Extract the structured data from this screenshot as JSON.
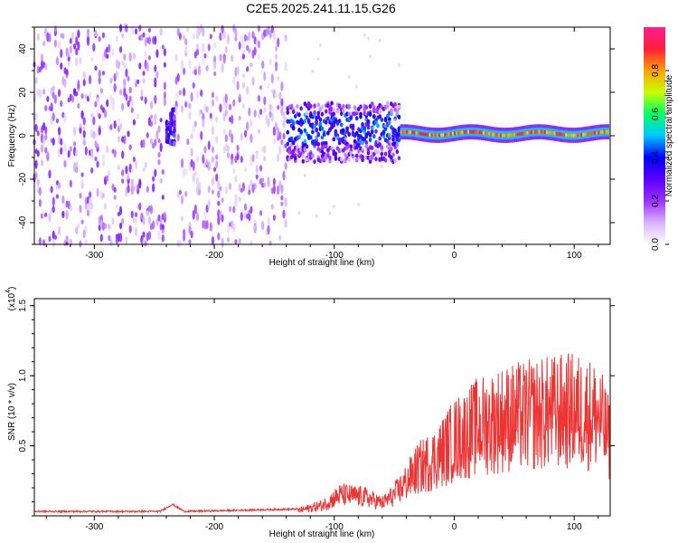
{
  "title": "C2E5.2025.241.11.15.G26",
  "chart_data": [
    {
      "type": "heatmap",
      "name": "spectrogram",
      "xlabel": "Height of straight line (km)",
      "ylabel": "Frequency (Hz)",
      "xlim": [
        -350,
        130
      ],
      "ylim": [
        -50,
        50
      ],
      "xticks": [
        -300,
        -200,
        -100,
        0,
        100
      ],
      "xtick_labels": [
        "-300",
        "-200",
        "-100",
        "0",
        "100"
      ],
      "yticks": [
        -40,
        -20,
        0,
        20,
        40
      ],
      "ytick_labels": [
        "-40",
        "-20",
        "0",
        "20",
        "40"
      ],
      "colorbar": {
        "label": "Normalized spectral amplitude",
        "range": [
          0,
          1
        ],
        "ticks": [
          0.0,
          0.2,
          0.4,
          0.6,
          0.8
        ],
        "tick_labels": [
          "0.0",
          "0.2",
          "0.4",
          "0.6",
          "0.8"
        ],
        "colors": [
          "#ffffff",
          "#d8b4ff",
          "#9b30ff",
          "#5a00ff",
          "#0000ff",
          "#00c8ff",
          "#00ff66",
          "#c8ff00",
          "#ffa000",
          "#ff1e3c",
          "#ff1e8c"
        ]
      },
      "regions": [
        {
          "x": [
            -350,
            -240
          ],
          "pattern": "broadband noise",
          "amplitude": 0.15
        },
        {
          "x": [
            -240,
            -232
          ],
          "pattern": "narrowband burst",
          "freq": 4,
          "amplitude": 0.3
        },
        {
          "x": [
            -232,
            -140
          ],
          "pattern": "broadband noise",
          "amplitude": 0.12
        },
        {
          "x": [
            -140,
            -45
          ],
          "pattern": "concentrating signal",
          "freq_range": [
            -12,
            15
          ],
          "amplitude": 0.3
        },
        {
          "x": [
            -45,
            130
          ],
          "pattern": "tone",
          "freq": 1,
          "amplitude": 0.9
        }
      ]
    },
    {
      "type": "line",
      "name": "snr",
      "xlabel": "Height of straight line (km)",
      "ylabel": "SNR (10 * v/v)",
      "scale_label": "(x10",
      "scale_exponent": "4",
      "xlim": [
        -350,
        130
      ],
      "ylim": [
        0,
        1.55
      ],
      "xticks": [
        -300,
        -200,
        -100,
        0,
        100
      ],
      "xtick_labels": [
        "-300",
        "-200",
        "-100",
        "0",
        "100"
      ],
      "yticks": [
        0.5,
        1.0,
        1.5
      ],
      "ytick_labels": [
        "0.5",
        "1.0",
        "1.5"
      ],
      "color": "#ee3333",
      "envelope": {
        "x": [
          -350,
          -245,
          -235,
          -225,
          -130,
          -110,
          -95,
          -75,
          -60,
          -50,
          -40,
          -30,
          -15,
          0,
          20,
          40,
          60,
          80,
          100,
          120,
          130
        ],
        "y": [
          0.03,
          0.03,
          0.09,
          0.03,
          0.05,
          0.1,
          0.2,
          0.18,
          0.12,
          0.2,
          0.32,
          0.45,
          0.55,
          0.72,
          0.85,
          0.92,
          0.95,
          0.98,
          1.0,
          0.95,
          0.7
        ]
      }
    }
  ]
}
